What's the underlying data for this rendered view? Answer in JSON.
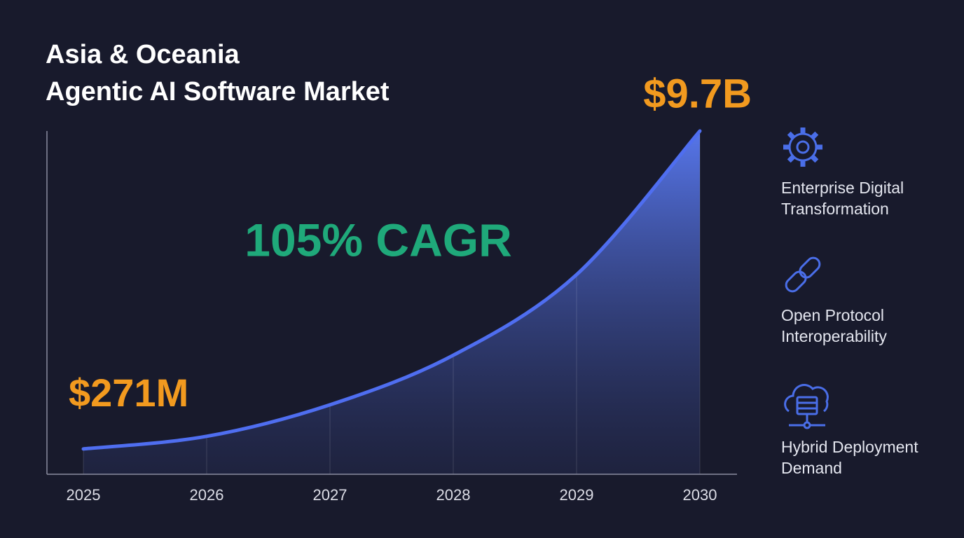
{
  "chart_data": {
    "type": "area",
    "title": [
      "Asia & Oceania",
      "Agentic AI Software Market"
    ],
    "annotation": "105% CAGR",
    "categories": [
      "2025",
      "2026",
      "2027",
      "2028",
      "2029",
      "2030"
    ],
    "values": [
      271,
      645,
      1580,
      3050,
      5440,
      9700
    ],
    "value_labels": [
      "$271M",
      null,
      null,
      null,
      null,
      "$9.7B"
    ],
    "color": "#4f6ef0",
    "label_color": "#f29a1f",
    "annotation_color": "#1fa97a",
    "ylim": [
      -480,
      9700
    ]
  },
  "drivers": [
    "Enterprise Digital Transformation",
    "Open Protocol Interoperability",
    "Hybrid Deployment Demand"
  ]
}
